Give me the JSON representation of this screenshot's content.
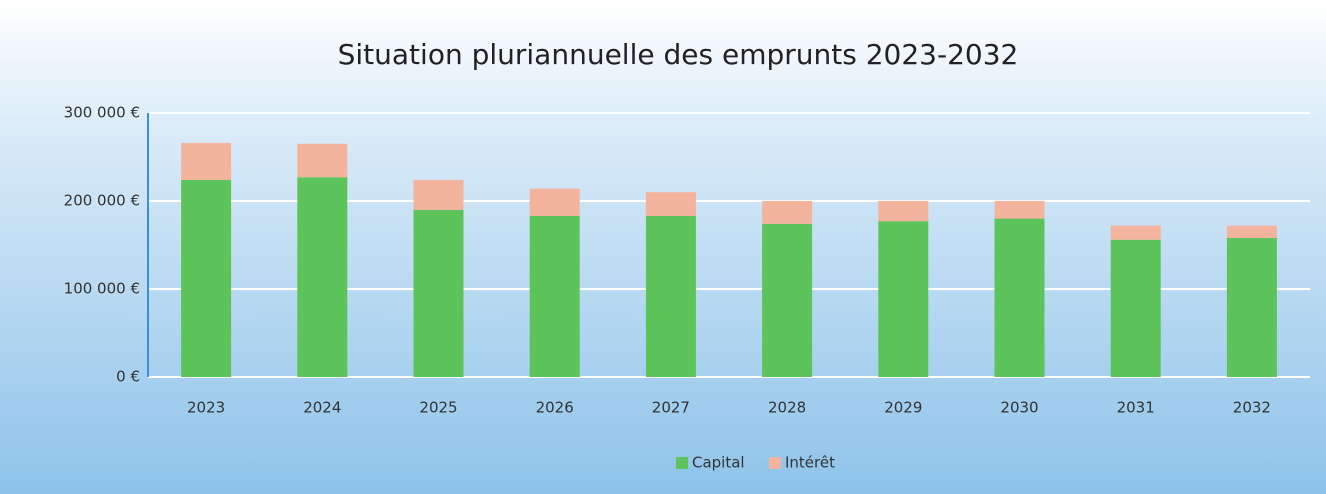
{
  "chart_data": {
    "type": "stacked_bar",
    "title": "Situation pluriannuelle des emprunts 2023-2032",
    "categories": [
      "2023",
      "2024",
      "2025",
      "2026",
      "2027",
      "2028",
      "2029",
      "2030",
      "2031",
      "2032"
    ],
    "series": [
      {
        "name": "Capital",
        "color": "#5cc45a",
        "values": [
          224000,
          227000,
          190000,
          183000,
          183000,
          174000,
          177000,
          180000,
          156000,
          158000
        ]
      },
      {
        "name": "Intérêt",
        "color": "#f4b39c",
        "values": [
          42000,
          38000,
          34000,
          31000,
          27000,
          26000,
          23000,
          20000,
          16000,
          14000
        ]
      }
    ],
    "ylim": [
      0,
      300000
    ],
    "yticks": [
      {
        "value": 0,
        "label": "0 €"
      },
      {
        "value": 100000,
        "label": "100 000 €"
      },
      {
        "value": 200000,
        "label": "200 000 €"
      },
      {
        "value": 300000,
        "label": "300 000 €"
      }
    ],
    "grid": true,
    "legend": "bottom"
  }
}
